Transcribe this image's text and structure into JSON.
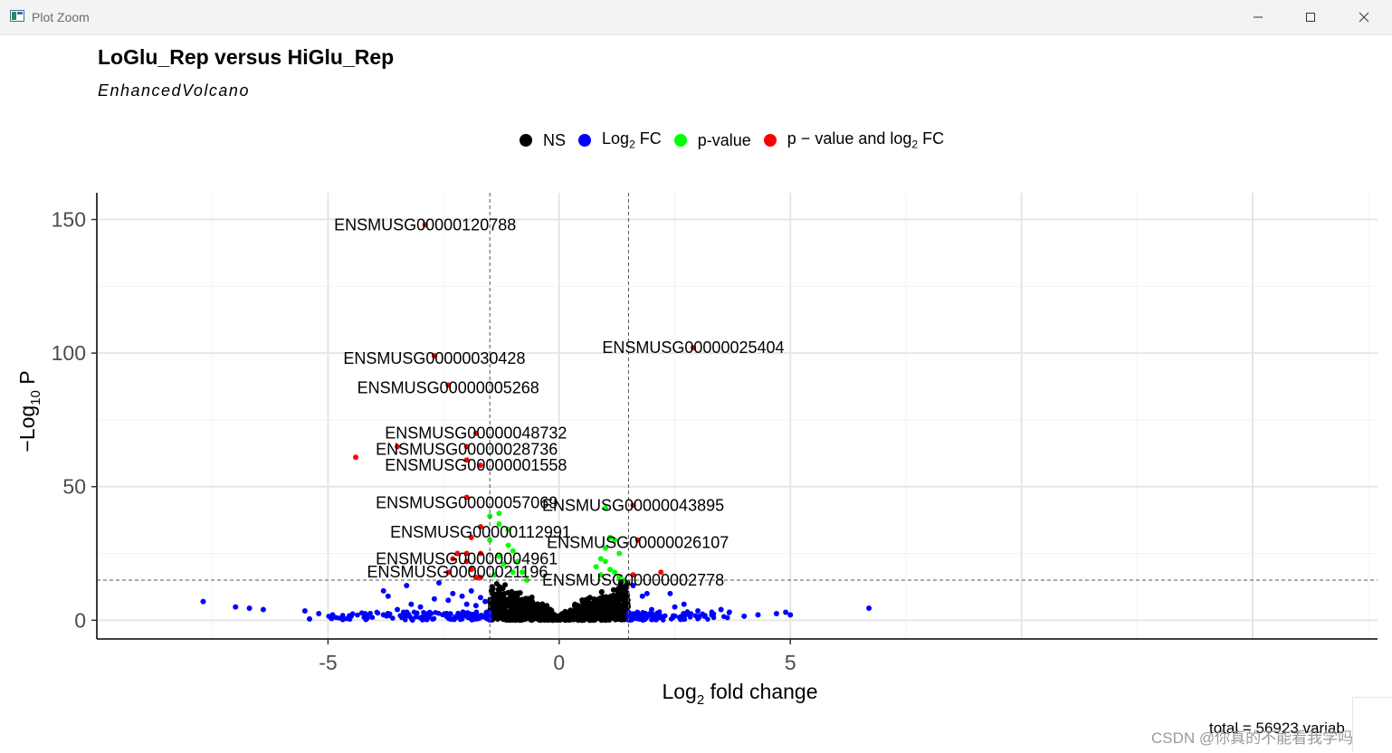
{
  "window": {
    "title": "Plot Zoom",
    "icons": [
      "plot-window-icon",
      "minimize-icon",
      "maximize-icon",
      "close-icon"
    ]
  },
  "chart_data": {
    "type": "scatter",
    "title": "LoGlu_Rep versus HiGlu_Rep",
    "subtitle": "EnhancedVolcano",
    "xlabel": "Log2 fold change",
    "ylabel": "−Log10 P",
    "xlim": [
      -10,
      17.7
    ],
    "ylim": [
      -7,
      160
    ],
    "xticks": [
      -5,
      0,
      5
    ],
    "yticks": [
      0,
      50,
      100,
      150
    ],
    "grid": true,
    "legend_position": "top",
    "caption": "total = 56923 variab",
    "fc_cutoff": 1.5,
    "p_cutoff_log10": 15,
    "legend": [
      {
        "key": "NS",
        "label": "NS",
        "color": "#000000"
      },
      {
        "key": "log2fc",
        "label": "Log2 FC",
        "color": "#0000ff"
      },
      {
        "key": "pvalue",
        "label": "p-value",
        "color": "#00ff00"
      },
      {
        "key": "both",
        "label": "p − value and log2 FC",
        "color": "#ff0000"
      }
    ],
    "series": [
      {
        "name": "Log2 FC",
        "color": "#0000ff",
        "points": [
          [
            -7.7,
            7
          ],
          [
            -7.0,
            5
          ],
          [
            -6.7,
            4.5
          ],
          [
            -6.4,
            4
          ],
          [
            -5.5,
            3.5
          ],
          [
            -5.4,
            0.5
          ],
          [
            -5.2,
            2.5
          ],
          [
            -4.9,
            2
          ],
          [
            -4.5,
            1.5
          ],
          [
            -4.2,
            2.5
          ],
          [
            -3.8,
            2
          ],
          [
            -3.8,
            11
          ],
          [
            -3.7,
            9
          ],
          [
            -3.3,
            13
          ],
          [
            -3.2,
            6
          ],
          [
            -2.6,
            14
          ],
          [
            -2.4,
            7.5
          ],
          [
            -2.3,
            10
          ],
          [
            -2.1,
            9
          ],
          [
            -1.9,
            11
          ],
          [
            -1.8,
            5.5
          ],
          [
            -1.7,
            8.5
          ],
          [
            -1.6,
            7
          ],
          [
            -2.7,
            8
          ],
          [
            -2.0,
            6
          ],
          [
            -3.0,
            5
          ],
          [
            -3.5,
            4
          ],
          [
            1.6,
            13
          ],
          [
            1.8,
            9
          ],
          [
            1.9,
            10
          ],
          [
            2.0,
            4
          ],
          [
            2.4,
            10
          ],
          [
            2.5,
            5
          ],
          [
            2.7,
            6
          ],
          [
            3.0,
            3.5
          ],
          [
            3.3,
            2
          ],
          [
            3.5,
            4
          ],
          [
            4.0,
            1.5
          ],
          [
            4.3,
            2
          ],
          [
            4.7,
            2.5
          ],
          [
            4.9,
            3
          ],
          [
            5.0,
            2
          ],
          [
            6.7,
            4.5
          ]
        ]
      },
      {
        "name": "p-value",
        "color": "#00ff00",
        "points": [
          [
            -1.5,
            39
          ],
          [
            -1.3,
            40
          ],
          [
            -1.3,
            36
          ],
          [
            -1.1,
            34
          ],
          [
            -1.5,
            30
          ],
          [
            -1.0,
            26
          ],
          [
            -0.9,
            22
          ],
          [
            -1.2,
            21
          ],
          [
            -1.0,
            18
          ],
          [
            -0.8,
            18
          ],
          [
            -1.4,
            17
          ],
          [
            -0.7,
            15
          ],
          [
            -1.3,
            24
          ],
          [
            -1.1,
            28
          ],
          [
            1.0,
            42
          ],
          [
            1.1,
            31
          ],
          [
            1.0,
            27
          ],
          [
            1.2,
            30
          ],
          [
            1.3,
            25
          ],
          [
            0.9,
            23
          ],
          [
            1.0,
            22
          ],
          [
            0.8,
            20
          ],
          [
            1.1,
            19
          ],
          [
            1.2,
            18
          ],
          [
            0.9,
            17
          ],
          [
            1.3,
            16
          ],
          [
            1.4,
            15
          ]
        ]
      },
      {
        "name": "p − value and log2 FC",
        "color": "#ff0000",
        "points": [
          [
            -2.9,
            148
          ],
          [
            -2.7,
            99
          ],
          [
            -2.4,
            88
          ],
          [
            -1.8,
            70
          ],
          [
            -2.0,
            65
          ],
          [
            -2.0,
            60
          ],
          [
            -1.7,
            58
          ],
          [
            -2.0,
            46
          ],
          [
            -1.7,
            35
          ],
          [
            -1.9,
            31
          ],
          [
            -2.2,
            25
          ],
          [
            -2.0,
            25
          ],
          [
            -1.7,
            25
          ],
          [
            -2.3,
            23
          ],
          [
            -2.0,
            22
          ],
          [
            -1.9,
            19
          ],
          [
            -2.4,
            18
          ],
          [
            -1.8,
            16
          ],
          [
            -1.7,
            16
          ],
          [
            -3.5,
            65
          ],
          [
            -4.4,
            61
          ],
          [
            2.9,
            102
          ],
          [
            1.6,
            43
          ],
          [
            1.7,
            30
          ],
          [
            2.2,
            18
          ],
          [
            1.6,
            17
          ]
        ]
      }
    ],
    "labels": [
      {
        "text": "ENSMUSG00000120788",
        "x": -2.9,
        "y": 148
      },
      {
        "text": "ENSMUSG00000025404",
        "x": 2.9,
        "y": 102
      },
      {
        "text": "ENSMUSG00000030428",
        "x": -2.7,
        "y": 98
      },
      {
        "text": "ENSMUSG00000005268",
        "x": -2.4,
        "y": 87
      },
      {
        "text": "ENSMUSG00000048732",
        "x": -1.8,
        "y": 70
      },
      {
        "text": "ENSMUSG00000028736",
        "x": -2.0,
        "y": 64
      },
      {
        "text": "ENSMUSG00000001558",
        "x": -1.8,
        "y": 58
      },
      {
        "text": "ENSMUSG00000057069",
        "x": -2.0,
        "y": 44
      },
      {
        "text": "ENSMUSG00000043895",
        "x": 1.6,
        "y": 43
      },
      {
        "text": "ENSMUSG00000112991",
        "x": -1.7,
        "y": 33
      },
      {
        "text": "ENSMUSG00000026107",
        "x": 1.7,
        "y": 29
      },
      {
        "text": "ENSMUSG00000004961",
        "x": -2.0,
        "y": 23
      },
      {
        "text": "ENSMUSG00000021196",
        "x": -2.2,
        "y": 18
      },
      {
        "text": "ENSMUSG00000002778",
        "x": 1.6,
        "y": 15
      }
    ]
  },
  "watermark": "CSDN @你真的不能看我学吗"
}
